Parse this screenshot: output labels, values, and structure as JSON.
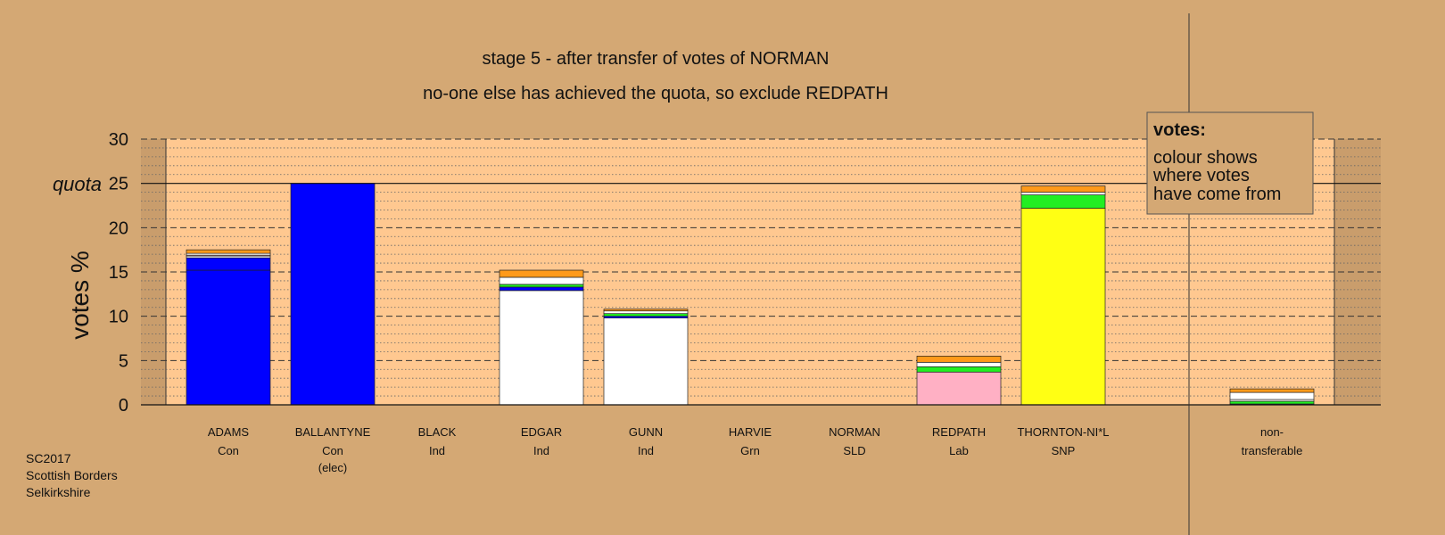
{
  "chart_data": {
    "type": "bar",
    "stacked": true,
    "title": "stage 5 - after transfer of votes of NORMAN",
    "subtitle": "no-one else has achieved the quota, so exclude REDPATH",
    "ylabel": "votes %",
    "ylim": [
      0,
      30
    ],
    "yticks": [
      0,
      5,
      10,
      15,
      20,
      25,
      30
    ],
    "quota": 25,
    "quota_label": "quota",
    "grid": true,
    "candidates": [
      {
        "name": "ADAMS",
        "party": "Con",
        "note": "",
        "segments": [
          {
            "color": "#0000ff",
            "value": 15.2
          },
          {
            "color": "#0000ff",
            "value": 1.4
          },
          {
            "color": "#ffffff",
            "value": 0.2
          },
          {
            "color": "#ffaaaa",
            "value": 0.1
          },
          {
            "color": "#ffffff",
            "value": 0.2
          },
          {
            "color": "#ff9a1a",
            "value": 0.4
          }
        ]
      },
      {
        "name": "BALLANTYNE",
        "party": "Con",
        "note": "(elec)",
        "segments": [
          {
            "color": "#0000ff",
            "value": 25.0
          }
        ]
      },
      {
        "name": "BLACK",
        "party": "Ind",
        "note": "",
        "segments": []
      },
      {
        "name": "EDGAR",
        "party": "Ind",
        "note": "",
        "segments": [
          {
            "color": "#ffffff",
            "value": 12.9
          },
          {
            "color": "#0000ff",
            "value": 0.4
          },
          {
            "color": "#22ee22",
            "value": 0.3
          },
          {
            "color": "#ffffff",
            "value": 0.8
          },
          {
            "color": "#ff9a1a",
            "value": 0.8
          }
        ]
      },
      {
        "name": "GUNN",
        "party": "Ind",
        "note": "",
        "segments": [
          {
            "color": "#ffffff",
            "value": 9.8
          },
          {
            "color": "#0000ff",
            "value": 0.2
          },
          {
            "color": "#22ee22",
            "value": 0.3
          },
          {
            "color": "#ffffff",
            "value": 0.3
          },
          {
            "color": "#ff9a1a",
            "value": 0.2
          }
        ]
      },
      {
        "name": "HARVIE",
        "party": "Grn",
        "note": "",
        "segments": []
      },
      {
        "name": "NORMAN",
        "party": "SLD",
        "note": "",
        "segments": []
      },
      {
        "name": "REDPATH",
        "party": "Lab",
        "note": "",
        "segments": [
          {
            "color": "#ffb0c4",
            "value": 3.7
          },
          {
            "color": "#22ee22",
            "value": 0.6
          },
          {
            "color": "#ffffff",
            "value": 0.5
          },
          {
            "color": "#ff9a1a",
            "value": 0.7
          }
        ]
      },
      {
        "name": "THORNTON-NI*L",
        "party": "SNP",
        "note": "",
        "segments": [
          {
            "color": "#ffff14",
            "value": 22.2
          },
          {
            "color": "#22ee22",
            "value": 1.5
          },
          {
            "color": "#ffffff",
            "value": 0.3
          },
          {
            "color": "#ff9a1a",
            "value": 0.7
          }
        ]
      },
      {
        "name": "non-",
        "party": "transferable",
        "note": "",
        "separate": true,
        "segments": [
          {
            "color": "#0000ff",
            "value": 0.1
          },
          {
            "color": "#22ee22",
            "value": 0.3
          },
          {
            "color": "#ffffff",
            "value": 0.2
          },
          {
            "color": "#ffffff",
            "value": 0.8
          },
          {
            "color": "#ff9a1a",
            "value": 0.4
          }
        ]
      }
    ]
  },
  "legend": {
    "title": "votes:",
    "lines": [
      "colour shows",
      "where votes",
      "have come from"
    ]
  },
  "footnote": [
    "SC2017",
    "Scottish Borders",
    "Selkirkshire"
  ],
  "colors": {
    "background": "#d4a874",
    "plot_fill": "#ffc890",
    "outer_band": "#c99d6c"
  }
}
